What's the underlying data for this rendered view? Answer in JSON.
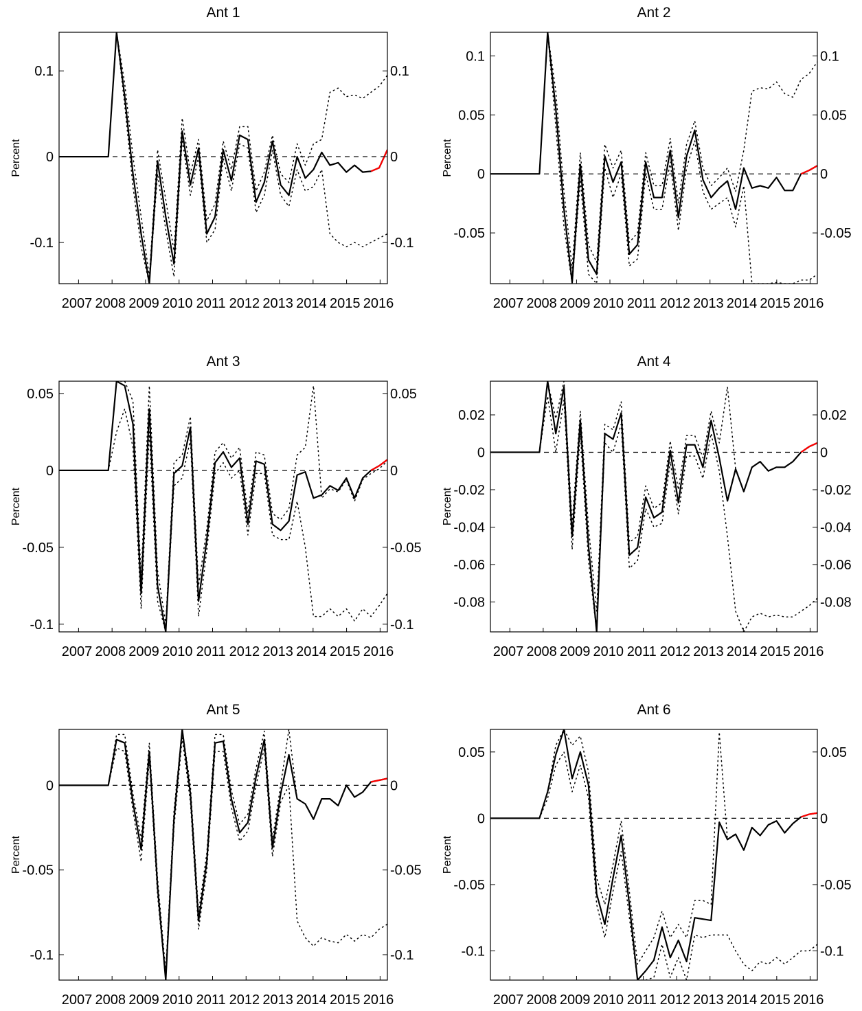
{
  "chart_data": [
    {
      "type": "line",
      "title": "Ant 1",
      "ylabel": "Percent",
      "xticks": [
        "2007",
        "2008",
        "2009",
        "2010",
        "2011",
        "2012",
        "2013",
        "2014",
        "2015",
        "2016"
      ],
      "yticks": [
        "-0.1",
        "0",
        "0.1"
      ],
      "ytick_values": [
        -0.1,
        0,
        0.1
      ],
      "ylim": [
        -0.148,
        0.145
      ],
      "series": [
        {
          "role": "estimate",
          "color": "#000000",
          "values": [
            0,
            0,
            0,
            0,
            0,
            0,
            0,
            0.145,
            0.07,
            -0.02,
            -0.09,
            -0.148,
            -0.005,
            -0.07,
            -0.125,
            0.03,
            -0.033,
            0.01,
            -0.09,
            -0.07,
            0.008,
            -0.028,
            0.025,
            0.02,
            -0.053,
            -0.03,
            0.018,
            -0.033,
            -0.045,
            0,
            -0.025,
            -0.015,
            0.005,
            -0.01,
            -0.007,
            -0.018,
            -0.01,
            -0.018,
            -0.017,
            -0.013,
            0.008
          ]
        },
        {
          "role": "upper band",
          "color": "#000000",
          "values": [
            0,
            0,
            0,
            0,
            0,
            0,
            0,
            0.145,
            0.085,
            0,
            -0.07,
            -0.14,
            0.008,
            -0.05,
            -0.11,
            0.045,
            -0.02,
            0.02,
            -0.075,
            -0.055,
            0.018,
            -0.015,
            0.035,
            0.035,
            -0.04,
            -0.018,
            0.025,
            -0.02,
            -0.03,
            0.015,
            -0.01,
            0.015,
            0.02,
            0.075,
            0.08,
            0.07,
            0.072,
            0.068,
            0.075,
            0.082,
            0.095
          ]
        },
        {
          "role": "lower band",
          "color": "#000000",
          "values": [
            0,
            0,
            0,
            0,
            0,
            0,
            0,
            0.145,
            0.06,
            -0.035,
            -0.105,
            -0.148,
            -0.02,
            -0.085,
            -0.14,
            0.02,
            -0.045,
            0,
            -0.1,
            -0.085,
            -0.002,
            -0.04,
            0.015,
            0.01,
            -0.065,
            -0.045,
            0.008,
            -0.045,
            -0.058,
            -0.015,
            -0.04,
            -0.035,
            -0.015,
            -0.09,
            -0.1,
            -0.105,
            -0.1,
            -0.105,
            -0.1,
            -0.095,
            -0.09
          ]
        }
      ]
    },
    {
      "type": "line",
      "title": "Ant 2",
      "ylabel": "Percent",
      "xticks": [
        "2007",
        "2008",
        "2009",
        "2010",
        "2011",
        "2012",
        "2013",
        "2014",
        "2015",
        "2016"
      ],
      "yticks": [
        "-0.05",
        "0",
        "0.05",
        "0.1"
      ],
      "ytick_values": [
        -0.05,
        0,
        0.05,
        0.1
      ],
      "ylim": [
        -0.093,
        0.12
      ],
      "series": [
        {
          "role": "estimate",
          "color": "#000000",
          "values": [
            0,
            0,
            0,
            0,
            0,
            0,
            0,
            0.12,
            0.055,
            -0.03,
            -0.092,
            0.008,
            -0.073,
            -0.085,
            0.015,
            -0.007,
            0.01,
            -0.068,
            -0.06,
            0.01,
            -0.02,
            -0.02,
            0.02,
            -0.037,
            0.015,
            0.037,
            -0.005,
            -0.02,
            -0.012,
            -0.006,
            -0.03,
            0.005,
            -0.012,
            -0.01,
            -0.012,
            -0.003,
            -0.014,
            -0.014,
            0,
            0.003,
            0.007
          ]
        },
        {
          "role": "upper band",
          "color": "#000000",
          "values": [
            0,
            0,
            0,
            0,
            0,
            0,
            0,
            0.12,
            0.07,
            -0.015,
            -0.08,
            0.018,
            -0.06,
            -0.075,
            0.025,
            0.005,
            0.02,
            -0.058,
            -0.05,
            0.018,
            -0.01,
            -0.01,
            0.03,
            -0.025,
            0.025,
            0.045,
            0.005,
            -0.01,
            -0.003,
            0.005,
            -0.015,
            0.02,
            0.07,
            0.073,
            0.072,
            0.078,
            0.068,
            0.065,
            0.08,
            0.085,
            0.095
          ]
        },
        {
          "role": "lower band",
          "color": "#000000",
          "values": [
            0,
            0,
            0,
            0,
            0,
            0,
            0,
            0.12,
            0.04,
            -0.045,
            -0.093,
            -0.005,
            -0.085,
            -0.093,
            0.005,
            -0.02,
            0,
            -0.078,
            -0.072,
            0,
            -0.03,
            -0.03,
            0.01,
            -0.048,
            0.005,
            0.028,
            -0.015,
            -0.03,
            -0.025,
            -0.02,
            -0.045,
            -0.01,
            -0.093,
            -0.093,
            -0.093,
            -0.092,
            -0.093,
            -0.093,
            -0.09,
            -0.09,
            -0.085
          ]
        }
      ]
    },
    {
      "type": "line",
      "title": "Ant 3",
      "ylabel": "Percent",
      "xticks": [
        "2007",
        "2008",
        "2009",
        "2010",
        "2011",
        "2012",
        "2013",
        "2014",
        "2015",
        "2016"
      ],
      "yticks": [
        "-0.1",
        "-0.05",
        "0",
        "0.05"
      ],
      "ytick_values": [
        -0.1,
        -0.05,
        0,
        0.05
      ],
      "ylim": [
        -0.105,
        0.058
      ],
      "series": [
        {
          "role": "estimate",
          "color": "#000000",
          "values": [
            0,
            0,
            0,
            0,
            0,
            0,
            0,
            0.058,
            0.055,
            0.03,
            -0.08,
            0.04,
            -0.075,
            -0.105,
            -0.002,
            0.003,
            0.028,
            -0.085,
            -0.045,
            0.005,
            0.012,
            0.002,
            0.008,
            -0.035,
            0.006,
            0.004,
            -0.035,
            -0.039,
            -0.033,
            -0.003,
            -0.001,
            -0.018,
            -0.016,
            -0.01,
            -0.013,
            -0.005,
            -0.018,
            -0.005,
            0,
            0.003,
            0.007
          ]
        },
        {
          "role": "upper band",
          "color": "#000000",
          "values": [
            0,
            0,
            0,
            0,
            0,
            0,
            0,
            0.058,
            0.058,
            0.045,
            -0.07,
            0.055,
            -0.065,
            -0.1,
            0.005,
            0.01,
            0.035,
            -0.075,
            -0.038,
            0.012,
            0.018,
            0.008,
            0.015,
            -0.028,
            0.012,
            0.01,
            -0.028,
            -0.032,
            -0.025,
            0.01,
            0.015,
            0.055,
            -0.018,
            -0.012,
            -0.014,
            -0.006,
            -0.02,
            -0.006,
            -0.002,
            0.001,
            0.006
          ]
        },
        {
          "role": "lower band",
          "color": "#000000",
          "values": [
            0,
            0,
            0,
            0,
            0,
            0,
            0,
            0.025,
            0.04,
            0.015,
            -0.09,
            0.025,
            -0.085,
            -0.105,
            -0.01,
            -0.005,
            0.02,
            -0.095,
            -0.052,
            -0.002,
            0.005,
            -0.005,
            0,
            -0.042,
            -0.002,
            -0.002,
            -0.042,
            -0.045,
            -0.045,
            -0.02,
            -0.05,
            -0.095,
            -0.095,
            -0.09,
            -0.095,
            -0.09,
            -0.098,
            -0.09,
            -0.095,
            -0.088,
            -0.08
          ]
        }
      ]
    },
    {
      "type": "line",
      "title": "Ant 4",
      "ylabel": "Percent",
      "xticks": [
        "2007",
        "2008",
        "2009",
        "2010",
        "2011",
        "2012",
        "2013",
        "2014",
        "2015",
        "2016"
      ],
      "yticks": [
        "-0.08",
        "-0.06",
        "-0.04",
        "-0.02",
        "0",
        "0.02"
      ],
      "ytick_values": [
        -0.08,
        -0.06,
        -0.04,
        -0.02,
        0,
        0.02
      ],
      "ylim": [
        -0.096,
        0.038
      ],
      "series": [
        {
          "role": "estimate",
          "color": "#000000",
          "values": [
            0,
            0,
            0,
            0,
            0,
            0,
            0,
            0.038,
            0.01,
            0.035,
            -0.045,
            0.017,
            -0.05,
            -0.096,
            0.01,
            0.007,
            0.021,
            -0.055,
            -0.051,
            -0.024,
            -0.035,
            -0.032,
            0.001,
            -0.027,
            0.004,
            0.004,
            -0.008,
            0.017,
            -0.003,
            -0.026,
            -0.009,
            -0.021,
            -0.008,
            -0.005,
            -0.01,
            -0.008,
            -0.008,
            -0.005,
            0,
            0.003,
            0.005
          ]
        },
        {
          "role": "upper band",
          "color": "#000000",
          "values": [
            0,
            0,
            0,
            0,
            0,
            0,
            0,
            0.038,
            0.018,
            0.038,
            -0.038,
            0.022,
            -0.04,
            -0.085,
            0.015,
            0.012,
            0.027,
            -0.048,
            -0.045,
            -0.018,
            -0.03,
            -0.027,
            0.006,
            -0.02,
            0.009,
            0.009,
            -0.003,
            0.022,
            0.005,
            0.035,
            -0.009,
            -0.021,
            -0.008,
            -0.005,
            -0.01,
            -0.008,
            -0.008,
            -0.005,
            0,
            0.003,
            0.005
          ]
        },
        {
          "role": "lower band",
          "color": "#000000",
          "values": [
            0,
            0,
            0,
            0,
            0,
            0,
            0,
            0.03,
            0,
            0.028,
            -0.052,
            0.01,
            -0.058,
            -0.096,
            0.005,
            0,
            0.015,
            -0.062,
            -0.058,
            -0.03,
            -0.04,
            -0.038,
            -0.005,
            -0.033,
            -0.002,
            -0.002,
            -0.014,
            0.01,
            -0.01,
            -0.045,
            -0.085,
            -0.096,
            -0.088,
            -0.086,
            -0.088,
            -0.087,
            -0.088,
            -0.088,
            -0.085,
            -0.082,
            -0.078
          ]
        }
      ]
    },
    {
      "type": "line",
      "title": "Ant 5",
      "ylabel": "Percent",
      "xticks": [
        "2007",
        "2008",
        "2009",
        "2010",
        "2011",
        "2012",
        "2013",
        "2014",
        "2015",
        "2016"
      ],
      "yticks": [
        "-0.1",
        "-0.05",
        "0"
      ],
      "ytick_values": [
        -0.1,
        -0.05,
        0
      ],
      "ylim": [
        -0.115,
        0.033
      ],
      "series": [
        {
          "role": "estimate",
          "color": "#000000",
          "values": [
            0,
            0,
            0,
            0,
            0,
            0,
            0,
            0.027,
            0.025,
            -0.01,
            -0.038,
            0.02,
            -0.06,
            -0.115,
            -0.02,
            0.033,
            -0.005,
            -0.08,
            -0.045,
            0.025,
            0.026,
            -0.008,
            -0.028,
            -0.022,
            0.005,
            0.027,
            -0.037,
            -0.005,
            0.018,
            -0.008,
            -0.011,
            -0.02,
            -0.008,
            -0.008,
            -0.012,
            0,
            -0.007,
            -0.004,
            0.002,
            0.003,
            0.004
          ]
        },
        {
          "role": "upper band",
          "color": "#000000",
          "values": [
            0,
            0,
            0,
            0,
            0,
            0,
            0,
            0.03,
            0.03,
            -0.005,
            -0.032,
            0.025,
            -0.055,
            -0.11,
            -0.015,
            0.033,
            0,
            -0.075,
            -0.04,
            0.03,
            0.03,
            -0.003,
            -0.023,
            -0.017,
            0.01,
            0.032,
            -0.032,
            0,
            0.033,
            -0.008,
            -0.011,
            -0.02,
            -0.008,
            -0.008,
            -0.012,
            0,
            -0.007,
            -0.004,
            0.002,
            0.003,
            0.004
          ]
        },
        {
          "role": "lower band",
          "color": "#000000",
          "values": [
            0,
            0,
            0,
            0,
            0,
            0,
            0,
            0.022,
            0.02,
            -0.015,
            -0.045,
            0.015,
            -0.065,
            -0.115,
            -0.025,
            0.028,
            -0.01,
            -0.085,
            -0.05,
            0.02,
            0.02,
            -0.013,
            -0.033,
            -0.027,
            0,
            0.022,
            -0.042,
            -0.01,
            0,
            -0.08,
            -0.09,
            -0.095,
            -0.09,
            -0.092,
            -0.093,
            -0.088,
            -0.092,
            -0.088,
            -0.09,
            -0.085,
            -0.082
          ]
        }
      ]
    },
    {
      "type": "line",
      "title": "Ant 6",
      "ylabel": "Percent",
      "xticks": [
        "2007",
        "2008",
        "2009",
        "2010",
        "2011",
        "2012",
        "2013",
        "2014",
        "2015",
        "2016"
      ],
      "yticks": [
        "-0.1",
        "-0.05",
        "0",
        "0.05"
      ],
      "ytick_values": [
        -0.1,
        -0.05,
        0,
        0.05
      ],
      "ylim": [
        -0.122,
        0.067
      ],
      "series": [
        {
          "role": "estimate",
          "color": "#000000",
          "values": [
            0,
            0,
            0,
            0,
            0,
            0,
            0,
            0.02,
            0.048,
            0.067,
            0.03,
            0.05,
            0.025,
            -0.057,
            -0.08,
            -0.045,
            -0.013,
            -0.065,
            -0.122,
            -0.115,
            -0.107,
            -0.082,
            -0.105,
            -0.092,
            -0.108,
            -0.075,
            -0.076,
            -0.077,
            -0.003,
            -0.016,
            -0.012,
            -0.024,
            -0.007,
            -0.013,
            -0.005,
            -0.002,
            -0.011,
            -0.004,
            0.001,
            0.003,
            0.004
          ]
        },
        {
          "role": "upper band",
          "color": "#000000",
          "values": [
            0,
            0,
            0,
            0,
            0,
            0,
            0,
            0.02,
            0.055,
            0.067,
            0.055,
            0.062,
            0.035,
            -0.045,
            -0.065,
            -0.035,
            -0.002,
            -0.055,
            -0.11,
            -0.1,
            -0.09,
            -0.07,
            -0.09,
            -0.08,
            -0.09,
            -0.062,
            -0.062,
            -0.065,
            0.065,
            -0.016,
            -0.012,
            -0.024,
            -0.007,
            -0.013,
            -0.005,
            -0.002,
            -0.011,
            -0.004,
            0.001,
            0.003,
            0.004
          ]
        },
        {
          "role": "lower band",
          "color": "#000000",
          "values": [
            0,
            0,
            0,
            0,
            0,
            0,
            0,
            0.015,
            0.04,
            0.05,
            0.02,
            0.04,
            0.015,
            -0.065,
            -0.09,
            -0.055,
            -0.025,
            -0.075,
            -0.122,
            -0.122,
            -0.12,
            -0.095,
            -0.12,
            -0.105,
            -0.122,
            -0.088,
            -0.09,
            -0.088,
            -0.088,
            -0.088,
            -0.1,
            -0.11,
            -0.115,
            -0.108,
            -0.11,
            -0.105,
            -0.11,
            -0.105,
            -0.1,
            -0.1,
            -0.095
          ]
        }
      ]
    }
  ]
}
